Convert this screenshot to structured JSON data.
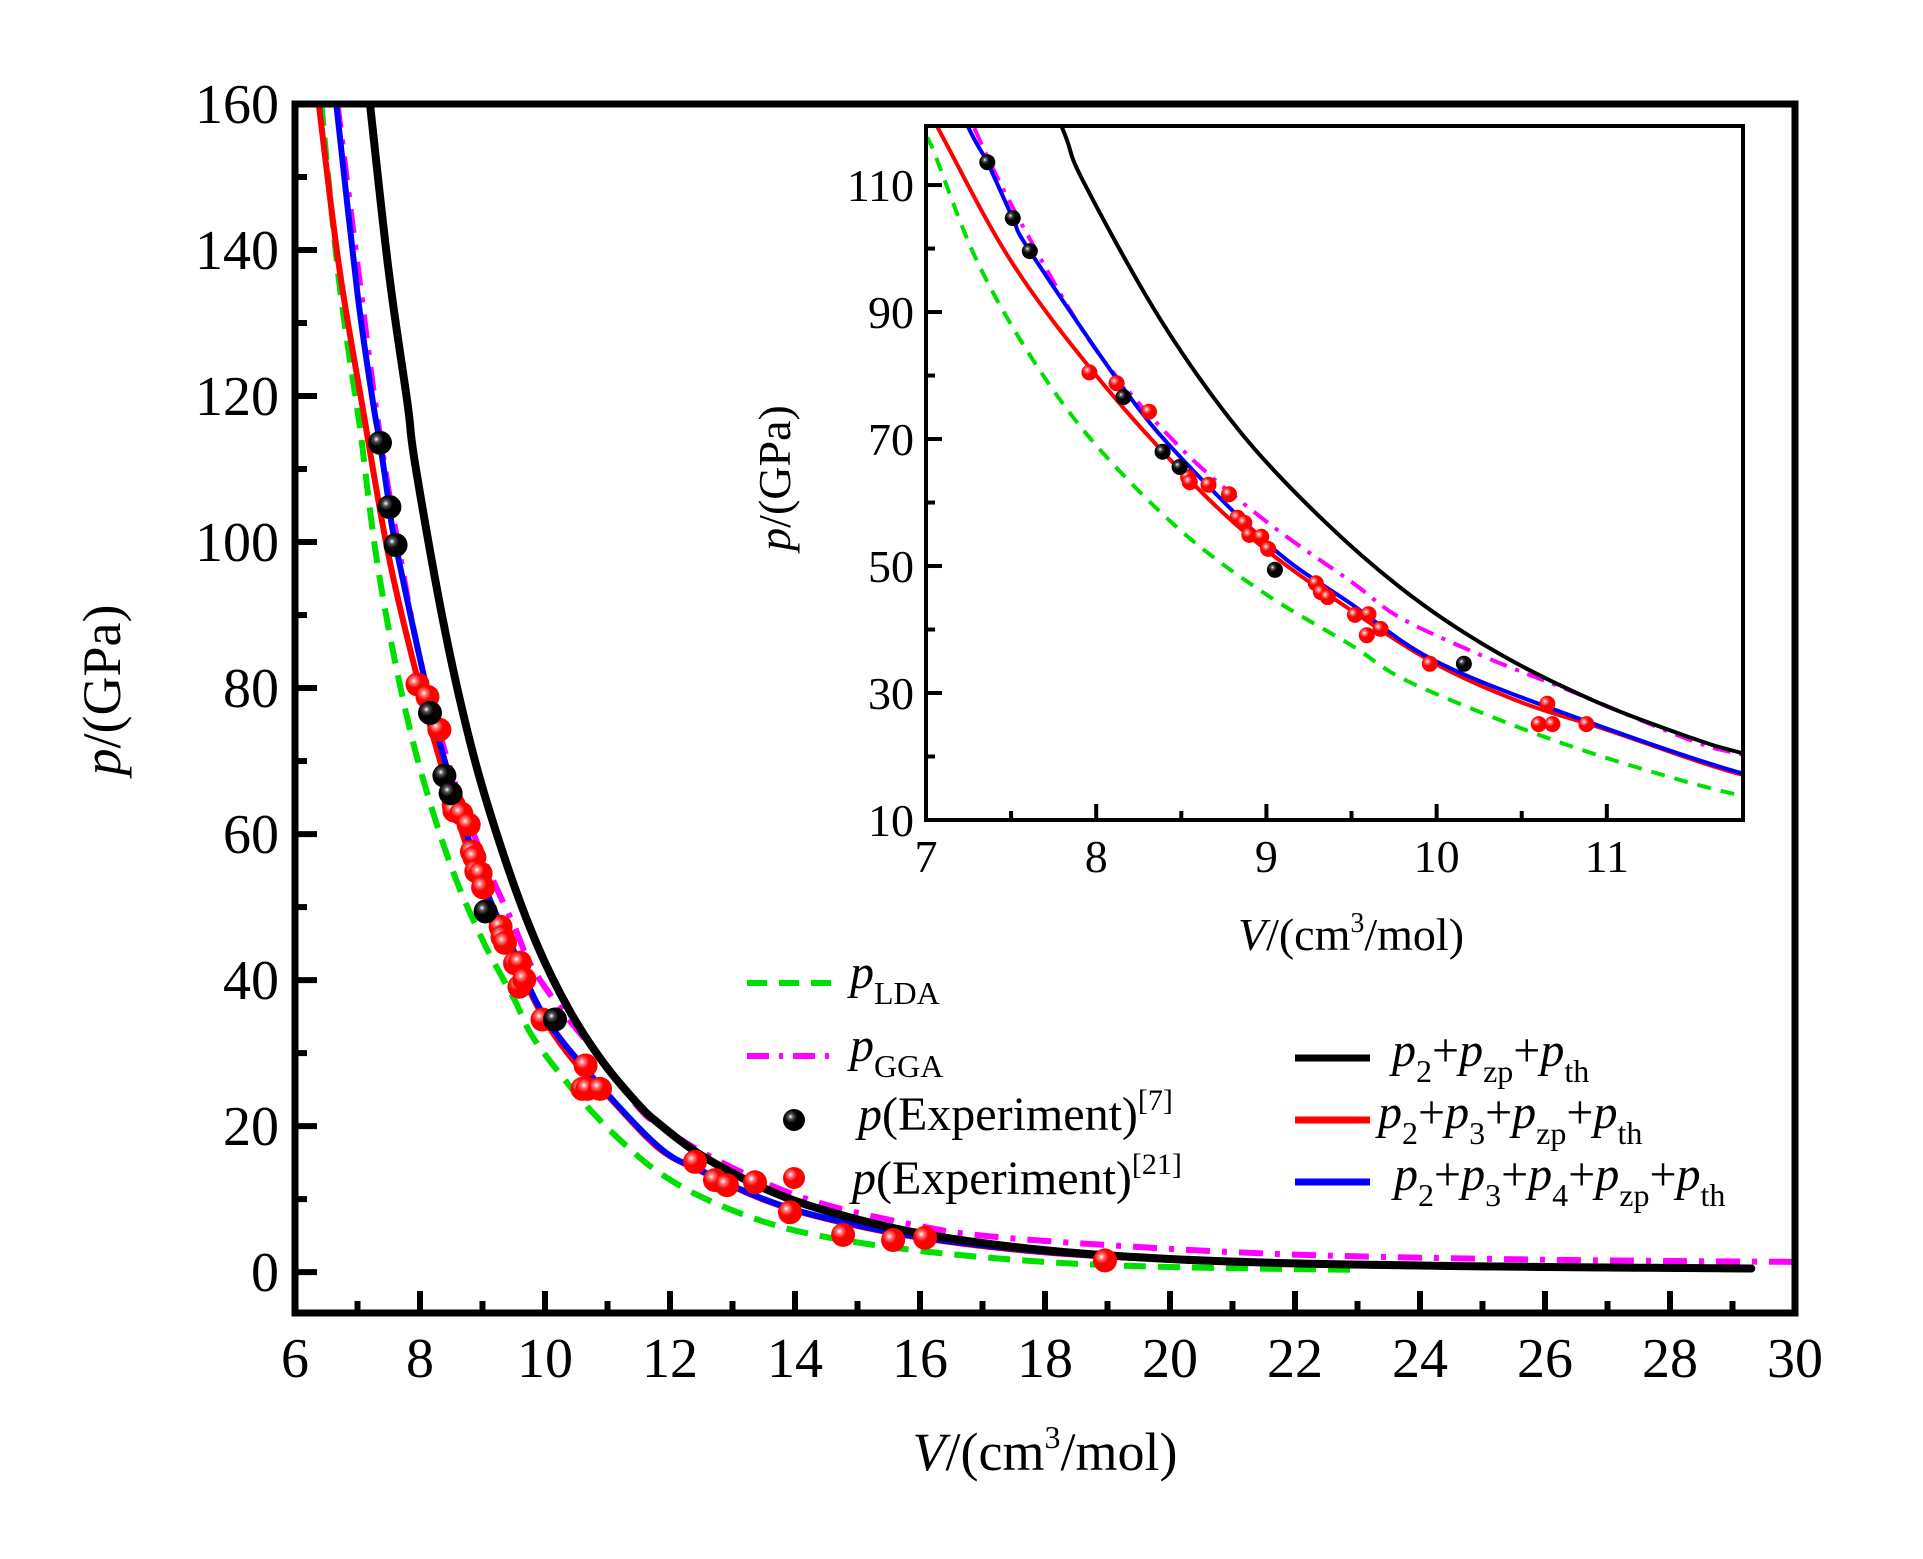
{
  "chart_data": [
    {
      "id": "main",
      "type": "line",
      "title": "",
      "xlabel": "V/(cm³/mol)",
      "xlabel_parts": {
        "italic": "V",
        "rest": "/(cm",
        "sup": "3",
        "tail": "/mol)"
      },
      "ylabel": "p/(GPa)",
      "ylabel_parts": {
        "italic": "p",
        "rest": "/(GPa)"
      },
      "xlim": [
        6,
        30
      ],
      "ylim": [
        -5.6,
        160
      ],
      "xticks": [
        6,
        8,
        10,
        12,
        14,
        16,
        18,
        20,
        22,
        24,
        26,
        28,
        30
      ],
      "yticks": [
        0,
        20,
        40,
        60,
        80,
        100,
        120,
        140,
        160
      ],
      "grid": false,
      "legend_placement": "center-bottom, two columns"
    },
    {
      "id": "inset",
      "type": "line",
      "title": "",
      "xlabel": "V/(cm³/mol)",
      "xlabel_parts": {
        "italic": "V",
        "rest": "/(cm",
        "sup": "3",
        "tail": "/mol)"
      },
      "ylabel": "p/(GPa)",
      "ylabel_parts": {
        "italic": "p",
        "rest": "/(GPa)"
      },
      "xlim": [
        7,
        11.8
      ],
      "ylim": [
        10,
        119.3
      ],
      "xticks": [
        7,
        8,
        9,
        10,
        11
      ],
      "yticks": [
        10,
        30,
        50,
        70,
        90,
        110
      ],
      "grid": false,
      "placement": "top-right inset"
    }
  ],
  "series": [
    {
      "key": "lda",
      "name": "p_LDA",
      "label": {
        "main": "p",
        "sub": "LDA"
      },
      "style": "dashed",
      "color": "#00e000",
      "x": [
        6.42,
        6.7,
        7.0,
        7.05,
        7.3,
        7.63,
        8.0,
        8.5,
        9.0,
        9.5,
        9.79,
        10.3,
        10.77,
        11.3,
        11.8,
        12.5,
        13.5,
        14.5,
        16,
        18,
        20,
        23
      ],
      "y": [
        160,
        136,
        118,
        115,
        98,
        82.4,
        69,
        55.5,
        45.5,
        37.5,
        32.4,
        26.5,
        21.8,
        17.3,
        13.8,
        10.3,
        6.9,
        4.8,
        2.9,
        1.4,
        0.7,
        0.3
      ]
    },
    {
      "key": "gga",
      "name": "p_GGA",
      "label": {
        "main": "p",
        "sub": "GGA"
      },
      "style": "dashdot",
      "color": "#ff00ff",
      "x": [
        6.68,
        7.0,
        7.3,
        7.6,
        8.0,
        8.5,
        9.0,
        9.5,
        9.79,
        10.3,
        10.77,
        11.49,
        11.8,
        12.5,
        13.5,
        14.5,
        16,
        17,
        19,
        22,
        26,
        30
      ],
      "y": [
        160,
        138,
        118,
        102,
        84,
        68.5,
        57,
        47.5,
        41.8,
        35.5,
        30.5,
        22.6,
        20.3,
        16.5,
        12.3,
        9.2,
        6.3,
        5.0,
        3.7,
        2.4,
        1.7,
        1.4
      ]
    },
    {
      "key": "p2_zp_th",
      "name": "p2+pzp+pth",
      "label_parts": [
        [
          "p",
          "2"
        ],
        [
          "p",
          "zp"
        ],
        [
          "p",
          "th"
        ]
      ],
      "style": "solid",
      "color": "#000000",
      "x": [
        7.2,
        7.5,
        7.8,
        7.92,
        8.38,
        8.85,
        9.35,
        9.86,
        10.38,
        10.94,
        11.49,
        11.8,
        12.5,
        13.5,
        14.5,
        16,
        18,
        20,
        22,
        24,
        26,
        29.3
      ],
      "y": [
        160,
        137,
        119,
        110.8,
        88.7,
        71,
        56.8,
        45.1,
        36,
        28.6,
        23,
        20.5,
        16,
        11.5,
        8.4,
        5.3,
        3.0,
        1.8,
        1.2,
        0.9,
        0.7,
        0.5
      ]
    },
    {
      "key": "p2_p3_zp_th",
      "name": "p2+p3+pzp+pth",
      "label_parts": [
        [
          "p",
          "2"
        ],
        [
          "p",
          "3"
        ],
        [
          "p",
          "zp"
        ],
        [
          "p",
          "th"
        ]
      ],
      "style": "solid",
      "color": "#ff0000",
      "x": [
        6.38,
        6.7,
        7.07,
        7.5,
        8.0,
        8.55,
        9.0,
        9.5,
        10.0,
        10.5,
        11.0,
        11.8,
        12.5,
        13.5,
        14.5,
        16,
        18,
        20,
        22,
        24,
        26,
        29.3
      ],
      "y": [
        160,
        138,
        119,
        98,
        80,
        63.5,
        52.5,
        43,
        34.5,
        28.5,
        24.2,
        17.1,
        13.8,
        9.9,
        7.3,
        4.7,
        2.7,
        1.7,
        1.1,
        0.8,
        0.6,
        0.4
      ]
    },
    {
      "key": "p2_p3_p4_zp_th",
      "name": "p2+p3+p4+pzp+pth",
      "label_parts": [
        [
          "p",
          "2"
        ],
        [
          "p",
          "3"
        ],
        [
          "p",
          "4"
        ],
        [
          "p",
          "zp"
        ],
        [
          "p",
          "th"
        ]
      ],
      "style": "solid",
      "color": "#0000ff",
      "x": [
        6.66,
        7.0,
        7.25,
        7.36,
        7.51,
        7.61,
        8.16,
        8.5,
        9.05,
        9.5,
        9.96,
        10.65,
        11.8,
        12.5,
        13.5,
        14.5,
        16,
        18,
        20,
        22,
        24,
        26,
        29.3
      ],
      "y": [
        160,
        134,
        119,
        113.6,
        104.8,
        99.6,
        78,
        67,
        52.5,
        44,
        35.5,
        27.8,
        17.3,
        13.9,
        10.0,
        7.4,
        4.8,
        2.8,
        1.7,
        1.1,
        0.8,
        0.6,
        0.4
      ]
    }
  ],
  "experiments": [
    {
      "key": "exp7",
      "name": "p(Experiment)[7]",
      "label": {
        "main": "p",
        "text": "(Experiment)",
        "sup": "[7]"
      },
      "color": "#000000",
      "x": [
        7.36,
        7.51,
        7.61,
        8.16,
        8.39,
        8.49,
        9.05,
        10.16
      ],
      "y": [
        113.6,
        104.8,
        99.6,
        76.6,
        68.0,
        65.6,
        49.4,
        34.6
      ]
    },
    {
      "key": "exp21",
      "name": "p(Experiment)[21]",
      "label": {
        "main": "p",
        "text": "(Experiment)",
        "sup": "[21]"
      },
      "color": "#ff0000",
      "x": [
        7.96,
        8.12,
        8.31,
        8.54,
        8.55,
        8.66,
        8.78,
        8.83,
        8.87,
        8.9,
        8.97,
        9.01,
        9.29,
        9.32,
        9.36,
        9.52,
        9.6,
        9.59,
        9.67,
        9.96,
        10.65,
        10.6,
        10.68,
        10.88,
        12.4,
        12.72,
        12.91,
        13.36,
        13.92,
        14.77,
        15.57,
        16.08,
        18.96
      ],
      "y": [
        80.5,
        78.8,
        74.3,
        64.0,
        63.2,
        62.8,
        61.3,
        57.6,
        56.8,
        54.9,
        54.6,
        52.7,
        47.3,
        45.9,
        45.1,
        42.3,
        42.4,
        39.1,
        40.1,
        34.6,
        28.3,
        25.1,
        25.1,
        25.1,
        15.1,
        12.6,
        11.9,
        12.3,
        8.2,
        5.1,
        4.4,
        4.7,
        1.6
      ]
    }
  ]
}
